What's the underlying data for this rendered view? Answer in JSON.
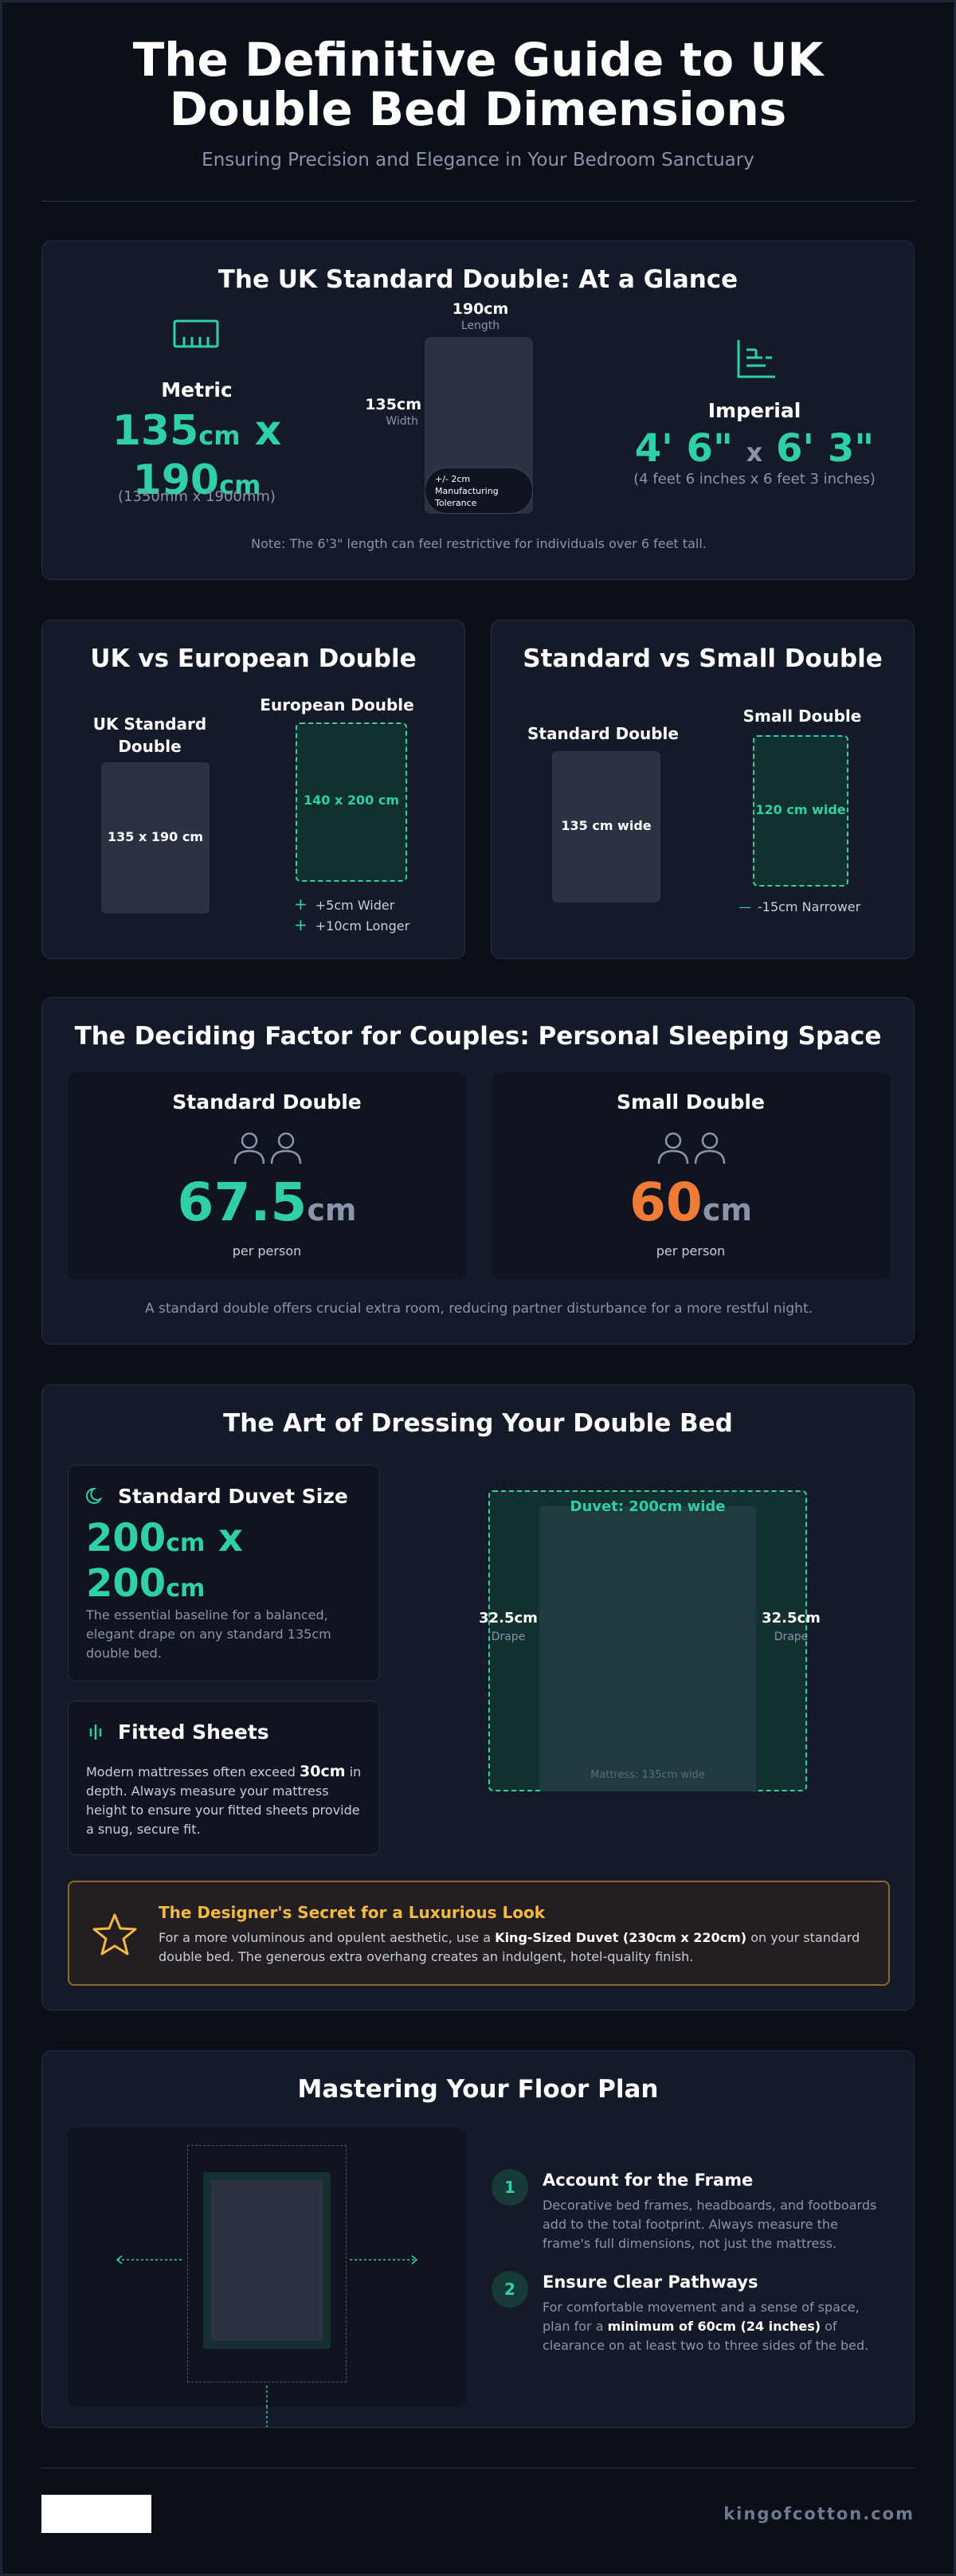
{
  "header": {
    "title_line1": "The Definitive Guide to UK",
    "title_line2": "Double Bed Dimensions",
    "subtitle": "Ensuring Precision and Elegance in Your Bedroom Sanctuary"
  },
  "glance": {
    "title": "The UK Standard Double: At a Glance",
    "metric": {
      "label": "Metric",
      "width_num": "135",
      "length_num": "190",
      "unit": "cm",
      "x": "x",
      "mm": "(1350mm x 1900mm)"
    },
    "diagram": {
      "length_value": "190cm",
      "length_label": "Length",
      "width_value": "135cm",
      "width_label": "Width",
      "tolerance_line1": "+/- 2cm",
      "tolerance_line2": "Manufacturing",
      "tolerance_line3": "Tolerance"
    },
    "imperial": {
      "label": "Imperial",
      "width": "4' 6\"",
      "x": "x",
      "length": "6' 3\"",
      "words": "(4 feet 6 inches x 6 feet 3 inches)"
    },
    "note": "Note: The 6'3\" length can feel restrictive for individuals over 6 feet tall."
  },
  "uk_vs_eu": {
    "title": "UK vs European Double",
    "uk_label_line1": "UK Standard",
    "uk_label_line2": "Double",
    "uk_dims": "135 x 190 cm",
    "eu_label": "European Double",
    "eu_dims": "140 x 200 cm",
    "diff1": "+5cm Wider",
    "diff2": "+10cm Longer",
    "plus": "+"
  },
  "std_vs_small": {
    "title": "Standard vs Small Double",
    "std_label": "Standard Double",
    "std_dims": "135 cm wide",
    "small_label": "Small Double",
    "small_dims": "120 cm wide",
    "diff": "-15cm Narrower",
    "minus": "—"
  },
  "couples": {
    "title": "The Deciding Factor for Couples: Personal Sleeping Space",
    "standard": {
      "label": "Standard Double",
      "value": "67.5",
      "unit": "cm",
      "per": "per person"
    },
    "small": {
      "label": "Small Double",
      "value": "60",
      "unit": "cm",
      "per": "per person"
    },
    "note": "A standard double offers crucial extra room, reducing partner disturbance for a more restful night.",
    "orange": "#f07b35"
  },
  "dressing": {
    "title": "The Art of Dressing Your Double Bed",
    "duvet": {
      "title": "Standard Duvet Size",
      "w": "200",
      "h": "200",
      "unit": "cm",
      "x": "x",
      "desc": "The essential baseline for a balanced, elegant drape on any standard 135cm double bed."
    },
    "sheets": {
      "title": "Fitted Sheets",
      "desc_pre": "Modern mattresses often exceed ",
      "desc_bold": "30cm",
      "desc_post": " in depth. Always measure your mattress height to ensure your fitted sheets provide a snug, secure fit."
    },
    "diagram": {
      "duvet_label": "Duvet: 200cm wide",
      "left_value": "32.5cm",
      "left_label": "Drape",
      "right_value": "32.5cm",
      "right_label": "Drape",
      "mattress_label": "Mattress: 135cm wide"
    },
    "secret": {
      "title": "The Designer's Secret for a Luxurious Look",
      "pre": "For a more voluminous and opulent aesthetic, use a ",
      "bold": "King-Sized Duvet (230cm x 220cm)",
      "post": " on your standard double bed. The generous extra overhang creates an indulgent, hotel-quality finish."
    }
  },
  "floor": {
    "title": "Mastering Your Floor Plan",
    "steps": [
      {
        "num": "1",
        "title": "Account for the Frame",
        "desc": "Decorative bed frames, headboards, and footboards add to the total footprint. Always measure the frame's full dimensions, not just the mattress."
      },
      {
        "num": "2",
        "title": "Ensure Clear Pathways",
        "desc_pre": "For comfortable movement and a sense of space, plan for a ",
        "desc_bold": "minimum of 60cm (24 inches)",
        "desc_post": " of clearance on at least two to three sides of the bed."
      }
    ]
  },
  "footer": {
    "site": "kingofcotton.com"
  },
  "colors": {
    "accent": "#2fcfa7",
    "orange": "#f07b35",
    "gold": "#f5b941",
    "background": "#0b0f18",
    "card": "#141a28"
  }
}
